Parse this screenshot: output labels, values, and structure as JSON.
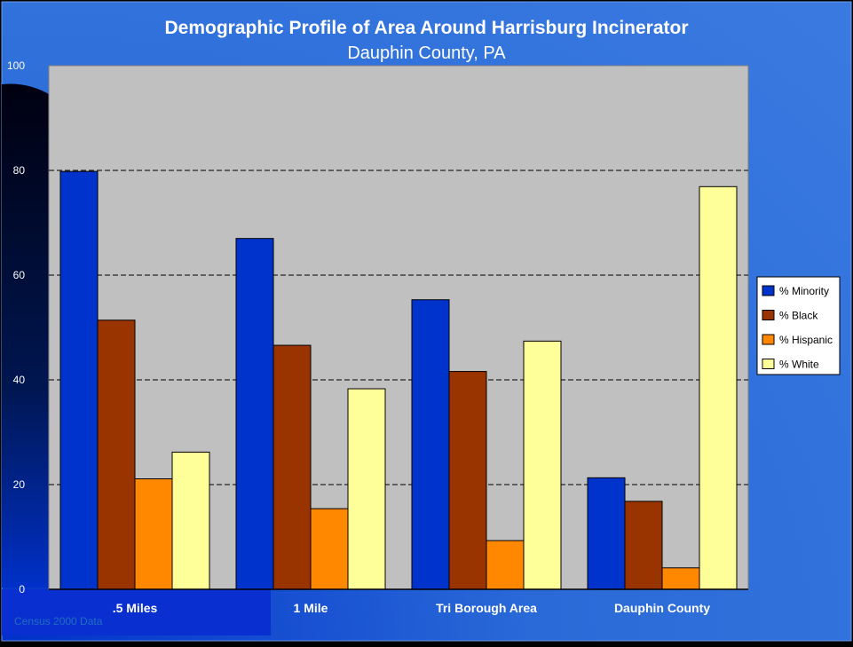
{
  "chart_data": {
    "type": "bar",
    "title": "Demographic Profile of Area Around Harrisburg Incinerator",
    "subtitle": "Dauphin County, PA",
    "categories": [
      ".5 Miles",
      "1 Mile",
      "Tri Borough Area",
      "Dauphin County"
    ],
    "series": [
      {
        "name": "% Minority",
        "color": "#0033cc",
        "values": [
          79.8,
          67,
          55.3,
          21.3
        ]
      },
      {
        "name": "% Black",
        "color": "#993300",
        "values": [
          51.4,
          46.6,
          41.6,
          16.8
        ]
      },
      {
        "name": "% Hispanic",
        "color": "#ff8800",
        "values": [
          21.1,
          15.4,
          9.3,
          4.1
        ]
      },
      {
        "name": "% White",
        "color": "#ffff99",
        "values": [
          26.2,
          38.3,
          47.4,
          76.9
        ]
      }
    ],
    "ylim": [
      0,
      100
    ],
    "yticks": [
      0,
      20,
      40,
      60,
      80,
      100
    ],
    "grid": true,
    "legend": "right",
    "source_note": "Census 2000 Data",
    "colors": {
      "background": "#2f6fdc",
      "plot_area": "#c0c0c0",
      "gridline": "#000000"
    }
  }
}
